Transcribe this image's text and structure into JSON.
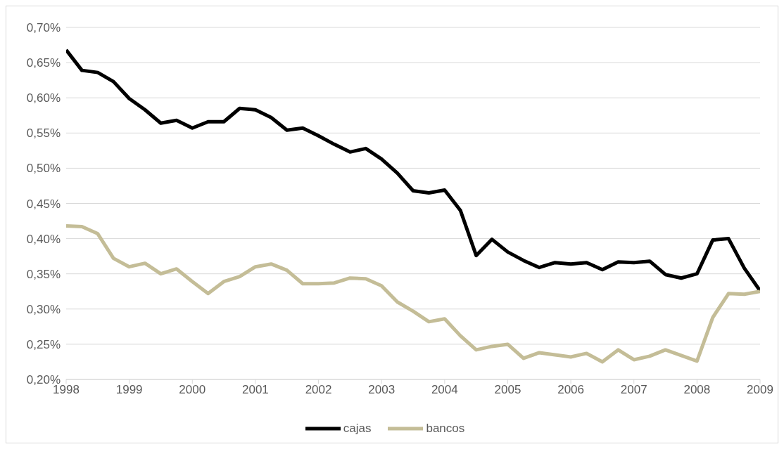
{
  "chart_data": {
    "type": "line",
    "x": [
      1998,
      1998.25,
      1998.5,
      1998.75,
      1999,
      1999.25,
      1999.5,
      1999.75,
      2000,
      2000.25,
      2000.5,
      2000.75,
      2001,
      2001.25,
      2001.5,
      2001.75,
      2002,
      2002.25,
      2002.5,
      2002.75,
      2003,
      2003.25,
      2003.5,
      2003.75,
      2004,
      2004.25,
      2004.5,
      2004.75,
      2005,
      2005.25,
      2005.5,
      2005.75,
      2006,
      2006.25,
      2006.5,
      2006.75,
      2007,
      2007.25,
      2007.5,
      2007.75,
      2008,
      2008.25,
      2008.5,
      2008.75,
      2009
    ],
    "series": [
      {
        "name": "cajas",
        "color": "#000000",
        "values": [
          0.668,
          0.639,
          0.636,
          0.623,
          0.599,
          0.583,
          0.564,
          0.568,
          0.557,
          0.566,
          0.566,
          0.585,
          0.583,
          0.572,
          0.554,
          0.557,
          0.546,
          0.534,
          0.523,
          0.528,
          0.513,
          0.493,
          0.468,
          0.465,
          0.469,
          0.44,
          0.376,
          0.399,
          0.381,
          0.369,
          0.359,
          0.366,
          0.364,
          0.366,
          0.356,
          0.367,
          0.366,
          0.368,
          0.349,
          0.344,
          0.35,
          0.398,
          0.4,
          0.358,
          0.326
        ]
      },
      {
        "name": "bancos",
        "color": "#c4bd97",
        "values": [
          0.418,
          0.417,
          0.407,
          0.372,
          0.36,
          0.365,
          0.35,
          0.357,
          0.339,
          0.322,
          0.339,
          0.346,
          0.36,
          0.364,
          0.355,
          0.336,
          0.336,
          0.337,
          0.344,
          0.343,
          0.333,
          0.31,
          0.297,
          0.282,
          0.286,
          0.262,
          0.242,
          0.247,
          0.25,
          0.23,
          0.238,
          0.235,
          0.232,
          0.237,
          0.225,
          0.242,
          0.228,
          0.233,
          0.242,
          0.234,
          0.226,
          0.288,
          0.322,
          0.321,
          0.325
        ]
      }
    ],
    "xlim": [
      1998,
      2009
    ],
    "xticks": [
      1998,
      1999,
      2000,
      2001,
      2002,
      2003,
      2004,
      2005,
      2006,
      2007,
      2008,
      2009
    ],
    "ylim": [
      0.2,
      0.7
    ],
    "yticks": [
      {
        "value": 0.2,
        "label": "0,20%"
      },
      {
        "value": 0.25,
        "label": "0,25%"
      },
      {
        "value": 0.3,
        "label": "0,30%"
      },
      {
        "value": 0.35,
        "label": "0,35%"
      },
      {
        "value": 0.4,
        "label": "0,40%"
      },
      {
        "value": 0.45,
        "label": "0,45%"
      },
      {
        "value": 0.5,
        "label": "0,50%"
      },
      {
        "value": 0.55,
        "label": "0,55%"
      },
      {
        "value": 0.6,
        "label": "0,60%"
      },
      {
        "value": 0.65,
        "label": "0,65%"
      },
      {
        "value": 0.7,
        "label": "0,70%"
      }
    ],
    "grid": "y",
    "legend": "bottom",
    "marker": "none",
    "line_style": "solid"
  }
}
